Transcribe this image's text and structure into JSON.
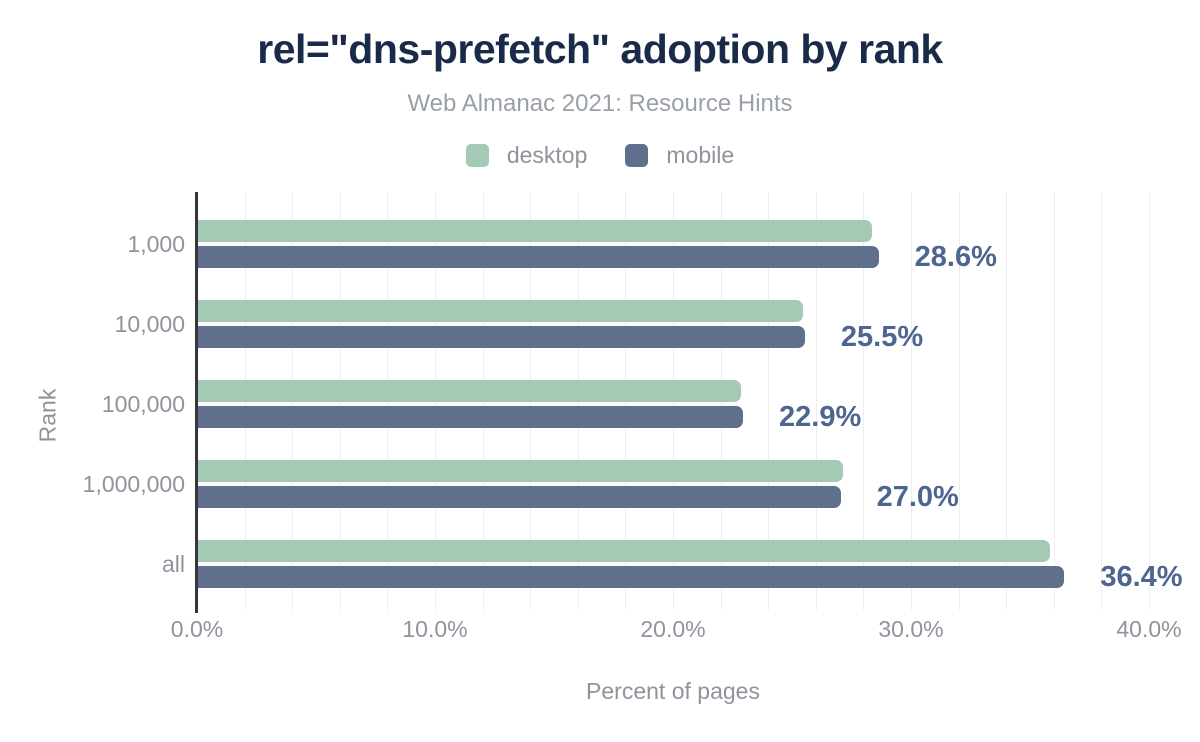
{
  "chart": {
    "title": "rel=\"dns-prefetch\" adoption by rank",
    "subtitle": "Web Almanac 2021: Resource Hints"
  },
  "chart_data": {
    "type": "bar",
    "orientation": "horizontal",
    "title": "rel=\"dns-prefetch\" adoption by rank",
    "subtitle": "Web Almanac 2021: Resource Hints",
    "categories": [
      "1,000",
      "10,000",
      "100,000",
      "1,000,000",
      "all"
    ],
    "series": [
      {
        "name": "desktop",
        "color": "#a4c9b5",
        "values": [
          28.3,
          25.4,
          22.8,
          27.1,
          35.8
        ]
      },
      {
        "name": "mobile",
        "color": "#5f708d",
        "values": [
          28.6,
          25.5,
          22.9,
          27.0,
          36.4
        ]
      }
    ],
    "annotations": [
      "28.6%",
      "25.5%",
      "22.9%",
      "27.0%",
      "36.4%"
    ],
    "annotation_series": "mobile",
    "xlabel": "Percent of pages",
    "ylabel": "Rank",
    "xlim": [
      0,
      40
    ],
    "xticks": [
      {
        "value": 0,
        "label": "0.0%"
      },
      {
        "value": 10,
        "label": "10.0%"
      },
      {
        "value": 20,
        "label": "20.0%"
      },
      {
        "value": 30,
        "label": "30.0%"
      },
      {
        "value": 40,
        "label": "40.0%"
      }
    ],
    "grid_step_percent": 2,
    "grid": true,
    "legend_position": "top",
    "colors": {
      "title": "#1a2b49",
      "subtitle": "#9aa0a8",
      "axis_text": "#8f949c",
      "annotation": "#4e6590",
      "gridline": "#ededf2",
      "axis_line": "#35363a",
      "background": "#ffffff"
    }
  }
}
